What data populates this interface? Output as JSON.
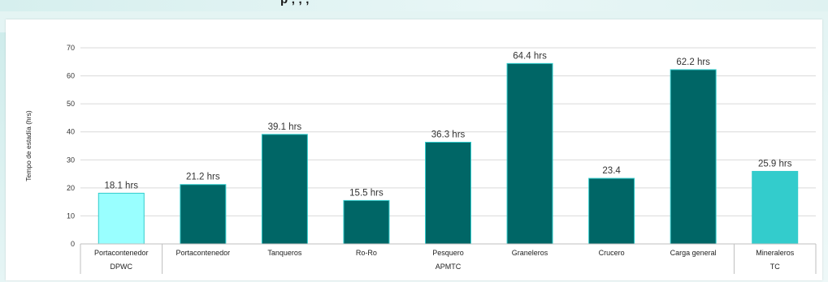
{
  "header": {
    "title_fragment": "p , , ,"
  },
  "chart_data": {
    "type": "bar",
    "title": "",
    "xlabel": "",
    "ylabel": "Tempo de estadía (hrs)",
    "ylim": [
      0,
      70
    ],
    "yticks": [
      0,
      10,
      20,
      30,
      40,
      50,
      60,
      70
    ],
    "grid": true,
    "legend": "none",
    "categories": [
      "Portacontenedor",
      "Portacontenedor",
      "Tanqueros",
      "Ro-Ro",
      "Pesquero",
      "Graneleros",
      "Crucero",
      "Carga general",
      "Mineraleros"
    ],
    "groups": [
      {
        "name": "DPWC",
        "span": 1
      },
      {
        "name": "APMTC",
        "span": 7
      },
      {
        "name": "TC",
        "span": 1
      }
    ],
    "values": [
      18.1,
      21.2,
      39.1,
      15.5,
      36.3,
      64.4,
      23.4,
      62.2,
      25.9
    ],
    "data_labels": [
      "18.1 hrs",
      "21.2 hrs",
      "39.1 hrs",
      "15.5 hrs",
      "36.3 hrs",
      "64.4 hrs",
      "23.4",
      "62.2 hrs",
      "25.9 hrs"
    ],
    "colors": [
      "#99ffff",
      "#006666",
      "#006666",
      "#006666",
      "#006666",
      "#006666",
      "#006666",
      "#006666",
      "#33cccc"
    ],
    "bar_edge_color": "#33cccc",
    "grid_color": "#d9d9d9"
  }
}
